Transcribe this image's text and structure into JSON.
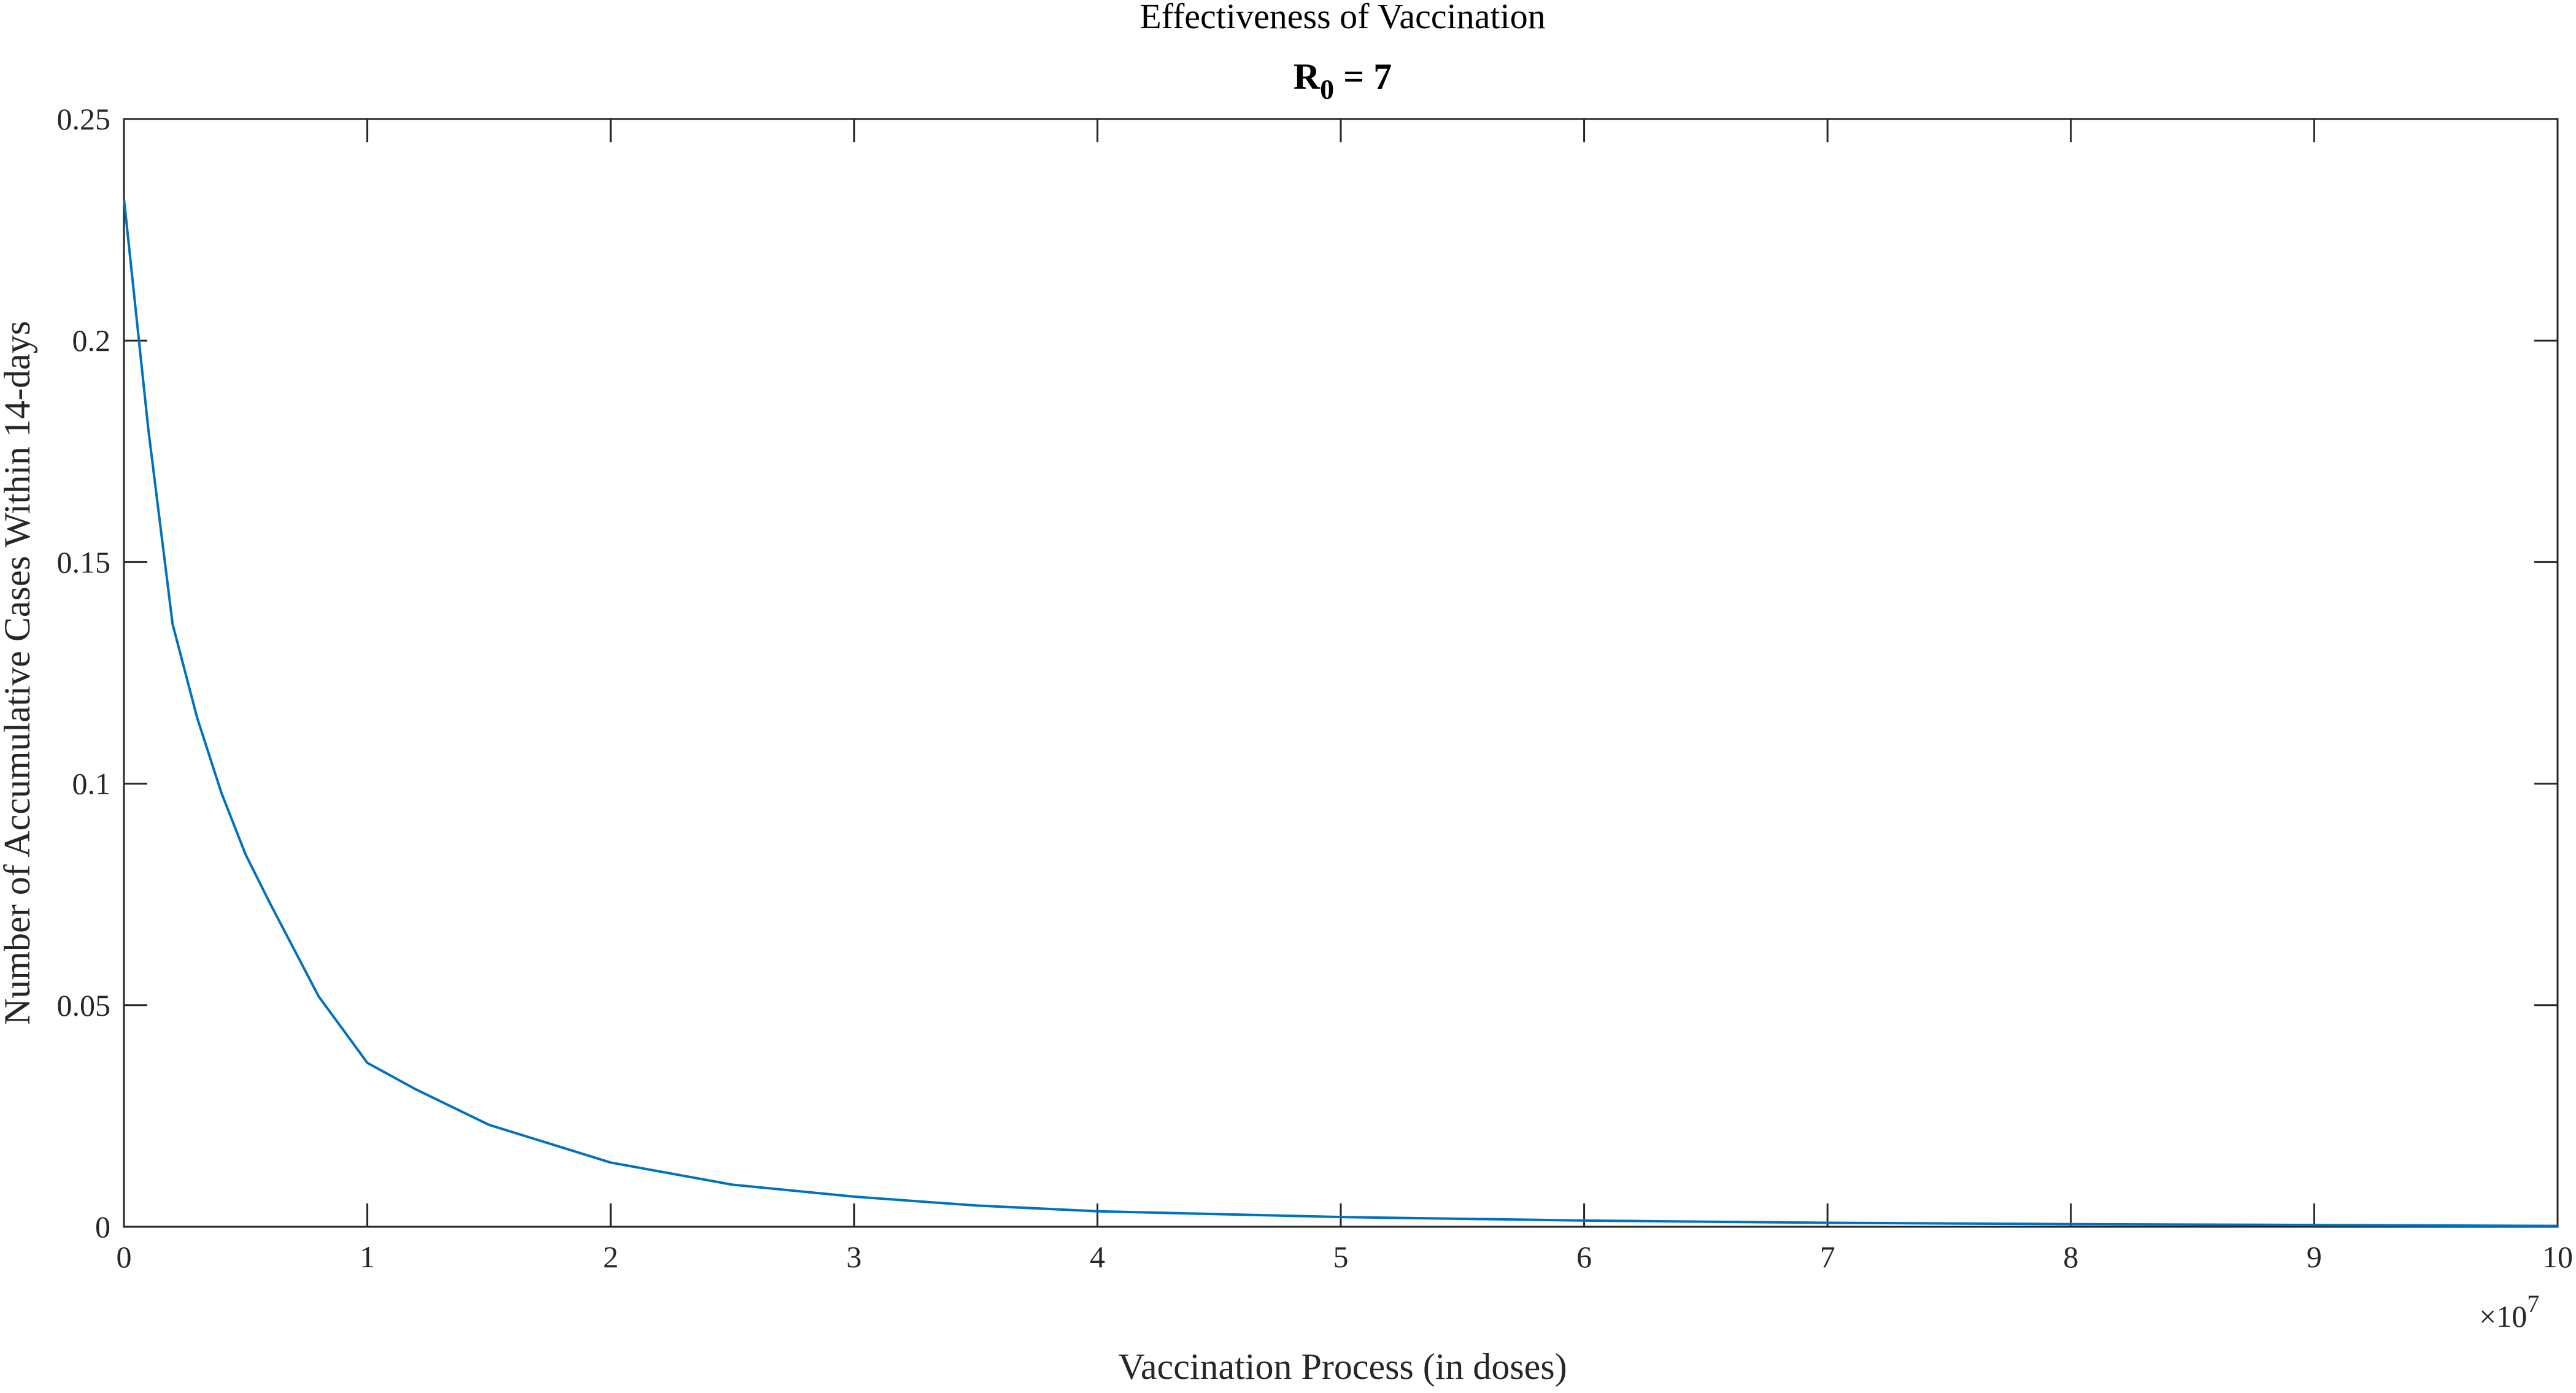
{
  "chart_data": {
    "type": "line",
    "title": "Effectiveness of Vaccination",
    "subtitle": {
      "base": "R",
      "sub": "0",
      "rest": " = 7"
    },
    "xlabel": "Vaccination Process (in doses)",
    "ylabel": "Number of Accumulative Cases Within 14-days",
    "x_multiplier_label": "×10",
    "x_multiplier_exponent": "7",
    "xlim": [
      0,
      10
    ],
    "ylim": [
      0,
      0.25
    ],
    "x_ticks": [
      "0",
      "1",
      "2",
      "3",
      "4",
      "5",
      "6",
      "7",
      "8",
      "9",
      "10"
    ],
    "y_ticks": [
      "0",
      "0.05",
      "0.1",
      "0.15",
      "0.2",
      "0.25"
    ],
    "grid": false,
    "line_color": "#0072bd",
    "series": [
      {
        "x": [
          0,
          0.1,
          0.2,
          0.3,
          0.4,
          0.5,
          0.6,
          0.8,
          1.0,
          1.2,
          1.5,
          2.0,
          2.5,
          3.0,
          3.5,
          4.0,
          5.0,
          6.0,
          7.0,
          8.0,
          9.0,
          10.0
        ],
        "values": [
          0.232,
          0.18,
          0.136,
          0.115,
          0.098,
          0.084,
          0.073,
          0.052,
          0.037,
          0.031,
          0.023,
          0.0145,
          0.0095,
          0.0068,
          0.0048,
          0.0035,
          0.0022,
          0.0014,
          0.0009,
          0.0006,
          0.0004,
          0.0002
        ]
      }
    ]
  }
}
